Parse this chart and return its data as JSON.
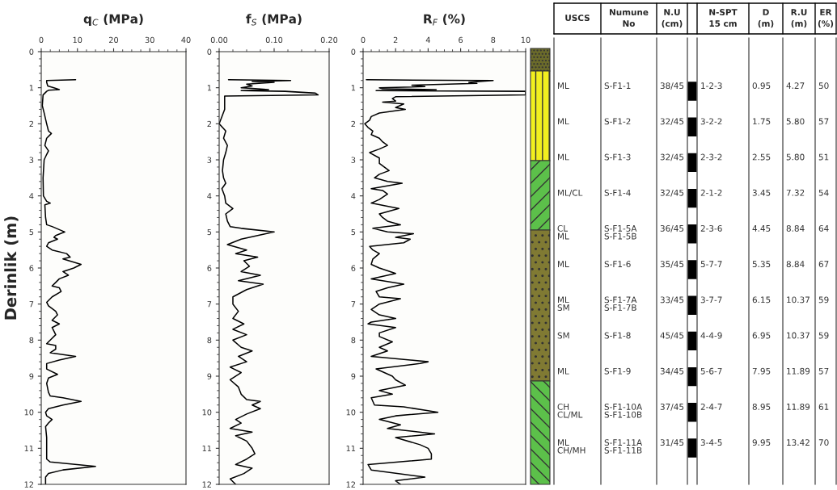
{
  "chart_data": [
    {
      "type": "line",
      "title": "q$_{C}$ (MPa)",
      "ylabel": "Derinlik (m)",
      "xlim": [
        0,
        40
      ],
      "xticks": [
        0,
        10,
        20,
        30,
        40
      ],
      "ylim": [
        12,
        0
      ],
      "yticks": [
        0,
        1,
        2,
        3,
        4,
        5,
        6,
        7,
        8,
        9,
        10,
        11,
        12
      ],
      "series": [
        {
          "color": "#000000",
          "x": [
            9.5,
            1.5,
            1.5,
            1.8,
            3.5,
            5,
            2,
            1.5,
            0.5,
            0.3,
            0.8,
            1.5,
            2.0,
            2.8,
            1.5,
            1.0,
            2.0,
            1.5,
            0.8,
            0.5,
            0.6,
            1.5,
            2.5,
            1.0,
            1.2,
            1.5,
            3,
            6.5,
            4,
            3.5,
            4.5,
            2,
            1.5,
            3,
            7,
            8,
            6,
            11,
            9,
            6,
            7.5,
            5,
            4,
            3,
            5,
            5.5,
            3,
            1.5,
            2,
            4,
            4.5,
            3,
            5,
            3,
            3.5,
            4,
            2.5,
            1.5,
            4,
            4,
            2.5,
            9.5,
            5,
            1.5,
            1.5,
            4.5,
            2,
            1.5,
            2,
            2.5,
            6,
            11,
            6,
            2,
            1.2,
            1.5,
            3,
            2,
            1.2,
            1.5,
            1.5,
            1.5,
            2.5,
            15,
            6,
            2,
            1.2,
            1.2
          ],
          "values": [
            0.78,
            0.8,
            0.85,
            0.95,
            1.0,
            1.05,
            1.07,
            1.1,
            1.2,
            1.5,
            1.7,
            2.0,
            2.2,
            2.27,
            2.4,
            2.6,
            2.75,
            2.85,
            3.0,
            3.5,
            4.0,
            4.15,
            4.2,
            4.25,
            4.6,
            4.8,
            4.85,
            5.0,
            5.1,
            5.15,
            5.2,
            5.3,
            5.4,
            5.5,
            5.6,
            5.7,
            5.75,
            5.9,
            6.0,
            6.1,
            6.2,
            6.3,
            6.4,
            6.5,
            6.55,
            6.65,
            6.8,
            6.95,
            7.05,
            7.2,
            7.3,
            7.45,
            7.55,
            7.65,
            7.75,
            7.85,
            8.0,
            8.1,
            8.15,
            8.25,
            8.35,
            8.45,
            8.55,
            8.65,
            8.8,
            8.95,
            9.05,
            9.2,
            9.45,
            9.55,
            9.6,
            9.7,
            9.8,
            9.9,
            10.0,
            10.1,
            10.2,
            10.3,
            10.4,
            10.7,
            11.0,
            11.3,
            11.38,
            11.5,
            11.6,
            11.7,
            11.8,
            12.0
          ]
        }
      ]
    },
    {
      "type": "line",
      "title": "f$_{S}$ (MPa)",
      "xlim": [
        0,
        0.2
      ],
      "xticks": [
        {
          "value": 0,
          "label": "0.00"
        },
        {
          "value": 0.1,
          "label": "0.10"
        },
        {
          "value": 0.2,
          "label": "0.20"
        }
      ],
      "ylim": [
        12,
        0
      ],
      "yticks": [
        0,
        1,
        2,
        3,
        4,
        5,
        6,
        7,
        8,
        9,
        10,
        11,
        12
      ],
      "series": [
        {
          "color": "#000000",
          "x": [
            0.017,
            0.13,
            0.06,
            0.1,
            0.05,
            0.06,
            0.04,
            0.06,
            0.09,
            0.04,
            0.12,
            0.175,
            0.18,
            0.01,
            0.01,
            0.01,
            0.005,
            0.0,
            0.012,
            0.008,
            0.015,
            0.012,
            0.008,
            0.006,
            0.008,
            0.012,
            0.005,
            0.01,
            0.012,
            0.025,
            0.012,
            0.015,
            0.02,
            0.04,
            0.1,
            0.085,
            0.04,
            0.015,
            0.05,
            0.03,
            0.07,
            0.045,
            0.055,
            0.04,
            0.075,
            0.035,
            0.08,
            0.05,
            0.025,
            0.025,
            0.035,
            0.025,
            0.045,
            0.025,
            0.05,
            0.025,
            0.04,
            0.06,
            0.035,
            0.05,
            0.02,
            0.04,
            0.02,
            0.035,
            0.04,
            0.05,
            0.075,
            0.06,
            0.075,
            0.05,
            0.03,
            0.04,
            0.02,
            0.06,
            0.03,
            0.05,
            0.06,
            0.065,
            0.05,
            0.03,
            0.06,
            0.045,
            0.02,
            0.03
          ],
          "values": [
            0.78,
            0.8,
            0.83,
            0.85,
            0.9,
            0.95,
            1.0,
            1.02,
            1.05,
            1.08,
            1.1,
            1.15,
            1.2,
            1.23,
            1.3,
            1.6,
            1.8,
            2.0,
            2.2,
            2.4,
            2.6,
            2.8,
            3.0,
            3.3,
            3.5,
            3.65,
            3.8,
            4.0,
            4.2,
            4.35,
            4.5,
            4.7,
            4.85,
            4.9,
            5.0,
            5.05,
            5.2,
            5.35,
            5.5,
            5.6,
            5.7,
            5.8,
            5.95,
            6.1,
            6.2,
            6.35,
            6.45,
            6.6,
            6.8,
            7.0,
            7.2,
            7.4,
            7.55,
            7.7,
            7.85,
            8.0,
            8.2,
            8.3,
            8.45,
            8.6,
            8.75,
            8.9,
            9.1,
            9.3,
            9.5,
            9.65,
            9.7,
            9.8,
            9.9,
            10.05,
            10.2,
            10.3,
            10.45,
            10.55,
            10.65,
            10.8,
            11.0,
            11.15,
            11.3,
            11.45,
            11.55,
            11.7,
            11.85,
            12.0
          ]
        }
      ]
    },
    {
      "type": "line",
      "title": "R$_{F}$ (%)",
      "xlim": [
        0,
        10
      ],
      "xticks": [
        0,
        2,
        4,
        6,
        8,
        10
      ],
      "ylim": [
        12,
        0
      ],
      "yticks": [
        0,
        1,
        2,
        3,
        4,
        5,
        6,
        7,
        8,
        9,
        10,
        11,
        12
      ],
      "series": [
        {
          "color": "#000000",
          "x": [
            0.2,
            8,
            6.5,
            7.0,
            3,
            3.8,
            1.0,
            1.2,
            4.5,
            0.8,
            10,
            10,
            2.0,
            1.8,
            2.0,
            1.2,
            2.5,
            2.0,
            2.6,
            1.0,
            0.5,
            0.4,
            0.1,
            0.3,
            0.6,
            0.5,
            1.0,
            1.2,
            1.5,
            1.0,
            0.4,
            1.0,
            1.0,
            1.3,
            1.6,
            1.0,
            0.7,
            1.5,
            2.4,
            0.5,
            1.2,
            1.5,
            1.0,
            0.5,
            2.2,
            1.0,
            1.2,
            1.5,
            2.3,
            0.6,
            1.5,
            3.1,
            2.0,
            2.9,
            2.5,
            0.4,
            0.6,
            1.0,
            0.6,
            0.5,
            1.0,
            2.0,
            0.5,
            2.5,
            1.5,
            0.8,
            1.0,
            2.3,
            1.0,
            0.5,
            1.0,
            2.0,
            0.5,
            0.3,
            2.0,
            1.0,
            1.0,
            1.8,
            1.0,
            1.5,
            0.5,
            4.0,
            3.5,
            0.8,
            1.8,
            2.0,
            2.6,
            1.0,
            1.8,
            0.5,
            0.7,
            2.5,
            4.6,
            2.0,
            1.0,
            2.3,
            1.5,
            4.4,
            2.0,
            3.5,
            4.0,
            4.2,
            4.2,
            0.3,
            0.5,
            3.8,
            2.0,
            2.3
          ],
          "values": [
            0.78,
            0.8,
            0.85,
            0.88,
            0.93,
            0.97,
            1.0,
            1.03,
            1.05,
            1.08,
            1.1,
            1.2,
            1.25,
            1.3,
            1.37,
            1.4,
            1.45,
            1.55,
            1.6,
            1.7,
            1.8,
            1.9,
            2.0,
            2.1,
            2.2,
            2.3,
            2.4,
            2.5,
            2.6,
            2.7,
            2.8,
            2.95,
            3.1,
            3.2,
            3.3,
            3.4,
            3.5,
            3.6,
            3.65,
            3.8,
            3.85,
            3.95,
            4.1,
            4.2,
            4.35,
            4.5,
            4.6,
            4.7,
            4.8,
            4.9,
            5.0,
            5.05,
            5.15,
            5.2,
            5.3,
            5.4,
            5.5,
            5.6,
            5.75,
            5.9,
            6.0,
            6.15,
            6.3,
            6.45,
            6.55,
            6.65,
            6.8,
            6.85,
            7.0,
            7.15,
            7.3,
            7.4,
            7.5,
            7.55,
            7.65,
            7.8,
            7.9,
            8.05,
            8.2,
            8.3,
            8.45,
            8.6,
            8.65,
            8.8,
            9.0,
            9.1,
            9.25,
            9.4,
            9.5,
            9.6,
            9.8,
            9.85,
            10.0,
            10.1,
            10.2,
            10.35,
            10.45,
            10.6,
            10.7,
            10.9,
            11.0,
            11.15,
            11.3,
            11.45,
            11.6,
            11.8,
            11.9,
            12.0
          ]
        }
      ]
    },
    {
      "type": "other",
      "categories": [
        "USCS",
        "Numune\nNo",
        "N.U\n(cm)",
        "N-SPT\n15 cm",
        "D\n(m)",
        "R.U\n(m)",
        "ER\n(%)"
      ],
      "annotations": [
        "ML",
        "S-F1-1",
        "38/45",
        "1-2-3",
        "0.95",
        "4.27",
        "50",
        "ML",
        "S-F1-2",
        "32/45",
        "3-2-2",
        "1.75",
        "5.80",
        "57",
        "ML",
        "S-F1-3",
        "32/45",
        "2-3-2",
        "2.55",
        "5.80",
        "51",
        "ML/CL",
        "S-F1-4",
        "32/45",
        "2-1-2",
        "3.45",
        "7.32",
        "54",
        "CL\nML",
        "S-F1-5A\nS-F1-5B",
        "36/45",
        "2-3-6",
        "4.45",
        "8.84",
        "64",
        "ML",
        "S-F1-6",
        "35/45",
        "5-7-7",
        "5.35",
        "8.84",
        "67",
        "ML\nSM",
        "S-F1-7A\nS-F1-7B",
        "33/45",
        "3-7-7",
        "6.15",
        "10.37",
        "59",
        "SM",
        "S-F1-8",
        "45/45",
        "4-4-9",
        "6.95",
        "10.37",
        "59",
        "ML",
        "S-F1-9",
        "34/45",
        "5-6-7",
        "7.95",
        "11.89",
        "57",
        "CH\nCL/ML",
        "S-F1-10A\nS-F1-10B",
        "37/45",
        "2-4-7",
        "8.95",
        "11.89",
        "61",
        "ML\nCH/MH",
        "S-F1-11A\nS-F1-11B",
        "31/45",
        "3-4-5",
        "9.95",
        "13.42",
        "70"
      ]
    }
  ]
}
